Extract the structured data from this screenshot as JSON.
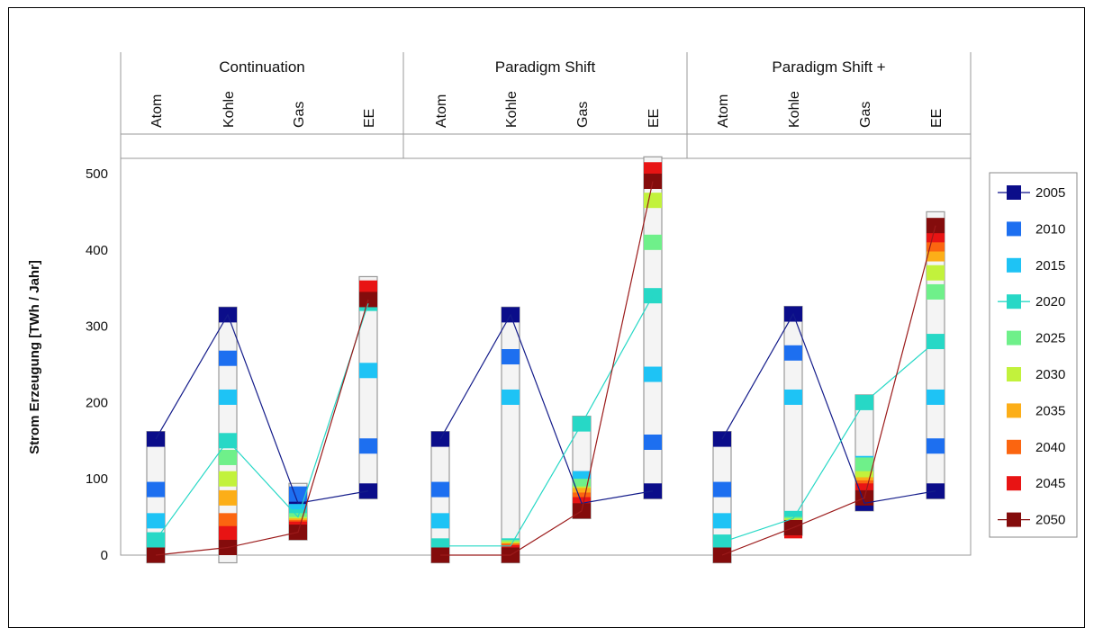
{
  "chart_data": {
    "type": "line",
    "ylabel": "Strom Erzeugung  [TWh / Jahr]",
    "ylim": [
      0,
      500
    ],
    "yticks": [
      0,
      100,
      200,
      300,
      400,
      500
    ],
    "grid": false,
    "legend_position": "right",
    "groups": [
      "Continuation",
      "Paradigm Shift",
      "Paradigm Shift +"
    ],
    "categories": [
      "Atom",
      "Kohle",
      "Gas",
      "EE"
    ],
    "series": [
      {
        "name": "2005",
        "color": "#0b0d8a",
        "values": [
          [
            152,
            315,
            68,
            84
          ],
          [
            152,
            315,
            68,
            84
          ],
          [
            152,
            316,
            68,
            84
          ]
        ]
      },
      {
        "name": "2010",
        "color": "#1d6ff0",
        "values": [
          [
            86,
            258,
            80,
            143
          ],
          [
            86,
            260,
            100,
            148
          ],
          [
            86,
            265,
            110,
            143
          ]
        ]
      },
      {
        "name": "2015",
        "color": "#1ec3f5",
        "values": [
          [
            45,
            207,
            57,
            242
          ],
          [
            45,
            207,
            100,
            237
          ],
          [
            45,
            207,
            120,
            207
          ]
        ]
      },
      {
        "name": "2020",
        "color": "#27d8c6",
        "values": [
          [
            20,
            150,
            50,
            330
          ],
          [
            12,
            12,
            172,
            340
          ],
          [
            17,
            48,
            200,
            280
          ]
        ]
      },
      {
        "name": "2025",
        "color": "#6ff08a",
        "values": [
          [
            0,
            128,
            45,
            null
          ],
          [
            0,
            10,
            90,
            410
          ],
          [
            0,
            40,
            118,
            345
          ]
        ]
      },
      {
        "name": "2030",
        "color": "#c2f23c",
        "values": [
          [
            0,
            100,
            40,
            null
          ],
          [
            0,
            8,
            80,
            465
          ],
          [
            0,
            38,
            100,
            370
          ]
        ]
      },
      {
        "name": "2035",
        "color": "#fcae18",
        "values": [
          [
            0,
            75,
            38,
            null
          ],
          [
            0,
            6,
            78,
            null
          ],
          [
            0,
            35,
            92,
            395
          ]
        ]
      },
      {
        "name": "2040",
        "color": "#fb6510",
        "values": [
          [
            0,
            45,
            36,
            null
          ],
          [
            0,
            5,
            72,
            null
          ],
          [
            0,
            34,
            88,
            408
          ]
        ]
      },
      {
        "name": "2045",
        "color": "#e81414",
        "values": [
          [
            0,
            28,
            34,
            350
          ],
          [
            0,
            3,
            66,
            505
          ],
          [
            0,
            32,
            84,
            420
          ]
        ]
      },
      {
        "name": "2050",
        "color": "#840c0c",
        "values": [
          [
            0,
            10,
            30,
            335
          ],
          [
            0,
            0,
            58,
            490
          ],
          [
            0,
            36,
            75,
            432
          ]
        ]
      }
    ],
    "ranges": [
      [
        [
          0,
          152
        ],
        [
          0,
          315
        ],
        [
          30,
          84
        ],
        [
          84,
          355
        ]
      ],
      [
        [
          0,
          152
        ],
        [
          0,
          315
        ],
        [
          58,
          172
        ],
        [
          84,
          512
        ]
      ],
      [
        [
          0,
          152
        ],
        [
          36,
          316
        ],
        [
          68,
          200
        ],
        [
          84,
          440
        ]
      ]
    ],
    "lines": [
      {
        "series": "2005",
        "color": "#141c8a",
        "points": [
          [
            152,
            315,
            68,
            84
          ],
          [
            152,
            315,
            68,
            84
          ],
          [
            152,
            316,
            68,
            84
          ]
        ]
      },
      {
        "series": "2020",
        "color": "#27d8c6",
        "points": [
          [
            20,
            150,
            50,
            330
          ],
          [
            12,
            12,
            172,
            340
          ],
          [
            17,
            48,
            200,
            280
          ]
        ]
      },
      {
        "series": "2050",
        "color": "#9b1a1a",
        "points": [
          [
            0,
            10,
            30,
            335
          ],
          [
            0,
            0,
            58,
            490
          ],
          [
            0,
            36,
            75,
            432
          ]
        ]
      }
    ]
  }
}
